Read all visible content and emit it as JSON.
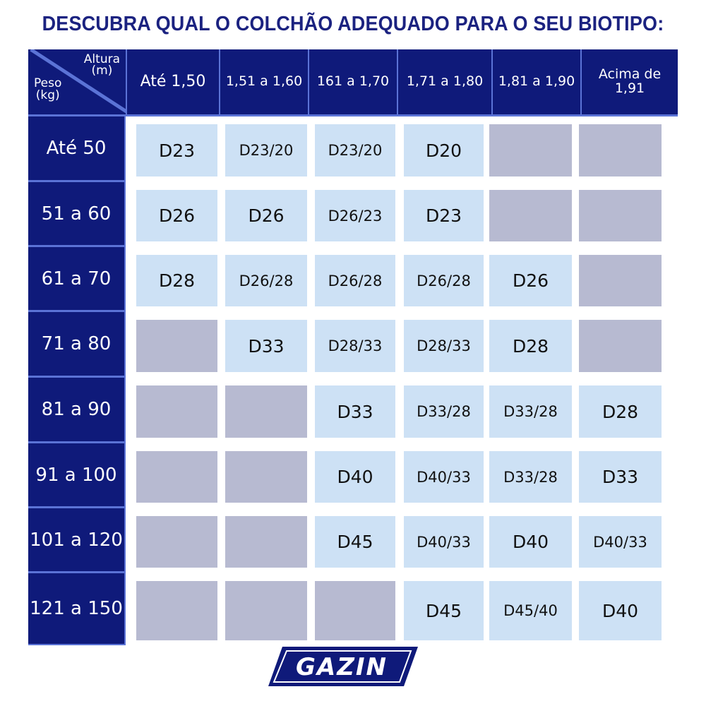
{
  "title": "DESCUBRA QUAL O COLCHÃO ADEQUADO PARA O SEU BIOTIPO:",
  "corner": {
    "height_label": "Altura",
    "height_unit": "(m)",
    "weight_label": "Peso",
    "weight_unit": "(kg)"
  },
  "columns": [
    "Até 1,50",
    "1,51 a 1,60",
    "161 a 1,70",
    "1,71 a 1,80",
    "1,81 a 1,90",
    "Acima de 1,91"
  ],
  "rows": [
    {
      "label": "Até 50",
      "cells": [
        "D23",
        "D23/20",
        "D23/20",
        "D20",
        "",
        ""
      ]
    },
    {
      "label": "51 a 60",
      "cells": [
        "D26",
        "D26",
        "D26/23",
        "D23",
        "",
        ""
      ]
    },
    {
      "label": "61 a 70",
      "cells": [
        "D28",
        "D26/28",
        "D26/28",
        "D26/28",
        "D26",
        ""
      ]
    },
    {
      "label": "71 a 80",
      "cells": [
        "",
        "D33",
        "D28/33",
        "D28/33",
        "D28",
        ""
      ]
    },
    {
      "label": "81 a 90",
      "cells": [
        "",
        "",
        "D33",
        "D33/28",
        "D33/28",
        "D28"
      ]
    },
    {
      "label": "91 a 100",
      "cells": [
        "",
        "",
        "D40",
        "D40/33",
        "D33/28",
        "D33"
      ]
    },
    {
      "label": "101 a 120",
      "cells": [
        "",
        "",
        "D45",
        "D40/33",
        "D40",
        "D40/33"
      ]
    },
    {
      "label": "121 a 150",
      "cells": [
        "",
        "",
        "",
        "D45",
        "D45/40",
        "D40"
      ]
    }
  ],
  "logo": "GAZIN",
  "colors": {
    "navy": "#0f1a7a",
    "separator": "#5b73d6",
    "available": "#cde1f5",
    "unavailable": "#b7bad1"
  }
}
